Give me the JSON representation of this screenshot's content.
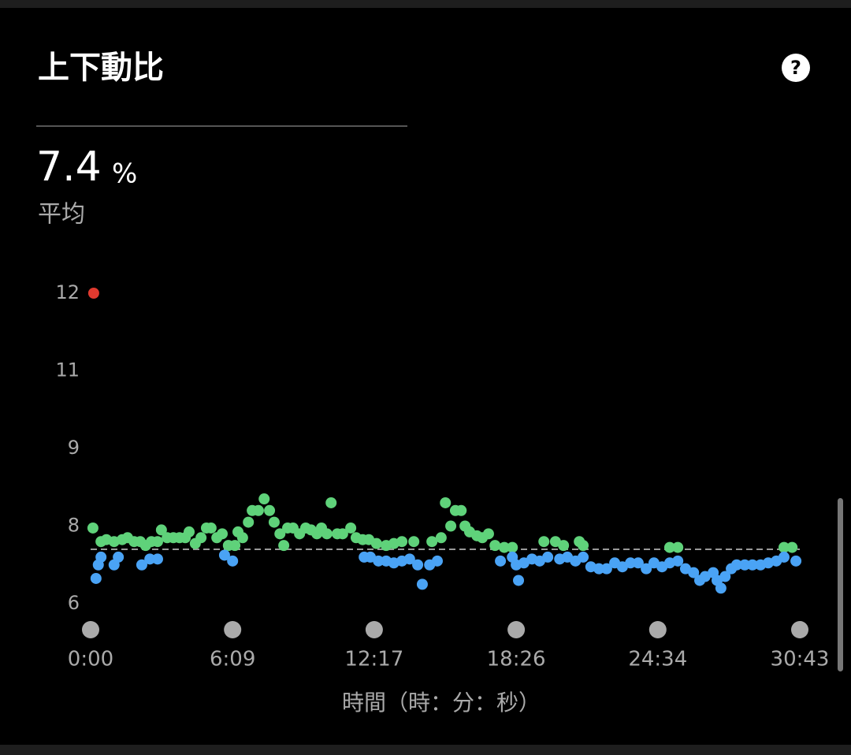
{
  "header": {
    "title": "上下動比",
    "help": "?"
  },
  "summary": {
    "value": 7.4,
    "unit": "%",
    "label": "平均"
  },
  "chart_data": {
    "type": "scatter",
    "xlabel": "時間（時：分：秒）",
    "xlim": [
      0,
      1843
    ],
    "xticks": [
      {
        "value": 0,
        "label": "0:00"
      },
      {
        "value": 369,
        "label": "6:09"
      },
      {
        "value": 737,
        "label": "12:17"
      },
      {
        "value": 1106,
        "label": "18:26"
      },
      {
        "value": 1474,
        "label": "24:34"
      },
      {
        "value": 1843,
        "label": "30:43"
      }
    ],
    "ylim": [
      6,
      12
    ],
    "yticks": [
      6,
      8,
      9,
      11,
      12
    ],
    "series": [
      {
        "color": "#5fd27a",
        "x": [
          6,
          27,
          41,
          61,
          82,
          96,
          113,
          129,
          143,
          158,
          174,
          184,
          199,
          215,
          231,
          246,
          256,
          272,
          287,
          301,
          313,
          328,
          342,
          358,
          375,
          383,
          395,
          410,
          420,
          436,
          451,
          465,
          477,
          492,
          502,
          512,
          526,
          543,
          559,
          573,
          588,
          600,
          614,
          625,
          641,
          655,
          676,
          690,
          707,
          723,
          743,
          768,
          788,
          809,
          840,
          887,
          911,
          922,
          936,
          948,
          963,
          973,
          985,
          1004,
          1018,
          1034,
          1051,
          1075,
          1096,
          1178,
          1208,
          1229,
          1270,
          1280,
          1505,
          1526,
          1802,
          1823
        ],
        "values": [
          7.95,
          7.6,
          7.65,
          7.6,
          7.65,
          7.7,
          7.6,
          7.6,
          7.5,
          7.6,
          7.6,
          7.9,
          7.7,
          7.7,
          7.7,
          7.7,
          7.85,
          7.55,
          7.7,
          7.95,
          7.95,
          7.7,
          7.8,
          7.5,
          7.5,
          7.85,
          7.7,
          8.05,
          8.2,
          8.2,
          8.35,
          8.2,
          8.05,
          7.8,
          7.5,
          7.95,
          7.95,
          7.8,
          7.95,
          7.9,
          7.8,
          7.95,
          7.8,
          8.3,
          7.8,
          7.8,
          7.95,
          7.7,
          7.65,
          7.65,
          7.55,
          7.5,
          7.55,
          7.6,
          7.6,
          7.6,
          7.7,
          8.3,
          8.0,
          8.2,
          8.2,
          8.0,
          7.85,
          7.75,
          7.7,
          7.8,
          7.5,
          7.45,
          7.45,
          7.6,
          7.6,
          7.5,
          7.6,
          7.5,
          7.45,
          7.45,
          7.45,
          7.45
        ]
      },
      {
        "color": "#4aa3f5",
        "x": [
          14,
          20,
          27,
          61,
          72,
          133,
          154,
          174,
          348,
          369,
          711,
          727,
          748,
          768,
          788,
          809,
          829,
          850,
          862,
          881,
          901,
          1065,
          1096,
          1106,
          1112,
          1126,
          1147,
          1167,
          1188,
          1219,
          1239,
          1260,
          1280,
          1300,
          1321,
          1341,
          1362,
          1382,
          1403,
          1423,
          1444,
          1464,
          1485,
          1505,
          1526,
          1546,
          1567,
          1583,
          1597,
          1618,
          1628,
          1638,
          1649,
          1665,
          1679,
          1700,
          1720,
          1741,
          1761,
          1782,
          1802,
          1833
        ],
        "values": [
          6.65,
          7.0,
          7.2,
          7.0,
          7.2,
          7.0,
          7.15,
          7.15,
          7.25,
          7.1,
          7.2,
          7.2,
          7.1,
          7.1,
          7.05,
          7.1,
          7.15,
          7.0,
          6.5,
          7.0,
          7.1,
          7.1,
          7.2,
          7.0,
          6.6,
          7.05,
          7.15,
          7.1,
          7.2,
          7.15,
          7.2,
          7.1,
          7.2,
          6.95,
          6.9,
          6.9,
          7.05,
          6.95,
          7.05,
          7.05,
          6.9,
          7.05,
          6.95,
          7.05,
          7.1,
          6.9,
          6.8,
          6.6,
          6.7,
          6.8,
          6.6,
          6.4,
          6.7,
          6.9,
          7.0,
          7.0,
          7.0,
          7.0,
          7.05,
          7.1,
          7.2,
          7.1
        ]
      },
      {
        "color": "#e03a2f",
        "x": [
          8
        ],
        "values": [
          12
        ]
      }
    ]
  }
}
